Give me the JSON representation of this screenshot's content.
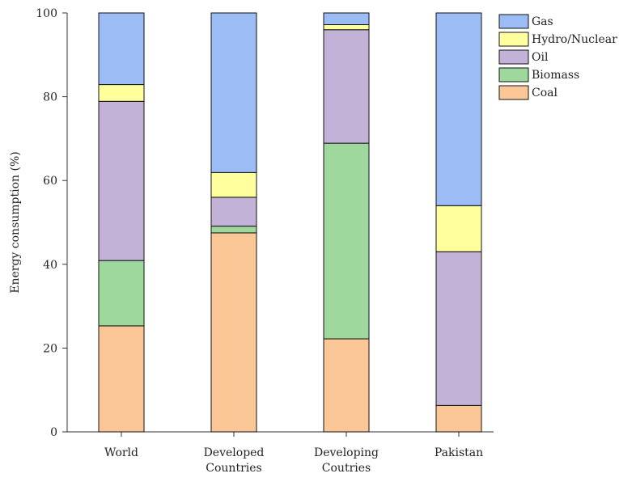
{
  "chart_data": {
    "type": "bar",
    "stacked": true,
    "ylabel": "Energy consumption (%)",
    "xlabel": "",
    "ylim": [
      0,
      100
    ],
    "yticks": [
      0,
      20,
      40,
      60,
      80,
      100
    ],
    "categories": [
      [
        "World"
      ],
      [
        "Developed",
        "Countries"
      ],
      [
        "Developing",
        "Coutries"
      ],
      [
        "Pakistan"
      ]
    ],
    "series": [
      {
        "name": "Coal",
        "color": "#fbc796",
        "values": [
          25.3,
          47.5,
          22.2,
          6.3
        ]
      },
      {
        "name": "Biomass",
        "color": "#9ed89c",
        "values": [
          15.6,
          1.6,
          46.7,
          0
        ]
      },
      {
        "name": "Oil",
        "color": "#c2b2d8",
        "values": [
          38.0,
          6.9,
          27.1,
          36.7
        ]
      },
      {
        "name": "Hydro/Nuclear",
        "color": "#ffff9e",
        "values": [
          4.0,
          5.9,
          1.2,
          11.0
        ]
      },
      {
        "name": "Gas",
        "color": "#9bbcf4",
        "values": [
          17.1,
          38.1,
          2.8,
          46.0
        ]
      }
    ],
    "legend": {
      "position": "top-right",
      "order": [
        "Gas",
        "Hydro/Nuclear",
        "Oil",
        "Biomass",
        "Coal"
      ]
    },
    "grid": false
  }
}
